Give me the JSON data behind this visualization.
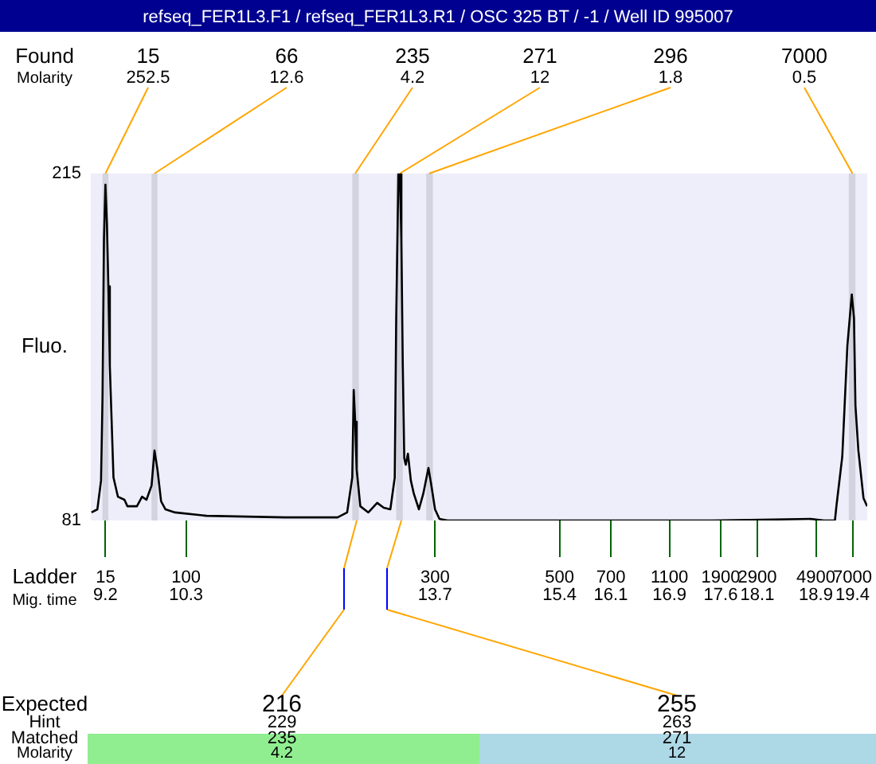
{
  "chart_data": {
    "type": "line",
    "title": "refseq_FER1L3.F1 / refseq_FER1L3.R1 / OSC 325 BT / -1 / Well ID 995007",
    "ylabel": "Fluo.",
    "xlim": [
      9.0,
      19.6
    ],
    "xticks": [
      9.2,
      10.3,
      13.7,
      15.4,
      16.1,
      16.9,
      17.6,
      18.1,
      18.9,
      19.4
    ],
    "ylim": [
      81,
      215
    ],
    "yticks": [
      81,
      215
    ],
    "grid": false,
    "legend": false,
    "marker": "none",
    "line_style": "solid",
    "series": [
      {
        "color": "#000000",
        "x": [
          9.01,
          9.09,
          9.14,
          9.16,
          9.18,
          9.2,
          9.22,
          9.24,
          9.26,
          9.31,
          9.37,
          9.46,
          9.5,
          9.63,
          9.7,
          9.76,
          9.83,
          9.87,
          9.91,
          9.96,
          10.02,
          10.15,
          10.58,
          11.66,
          12.37,
          12.5,
          12.57,
          12.59,
          12.61,
          12.63,
          12.68,
          12.79,
          12.91,
          13.0,
          13.09,
          13.15,
          13.17,
          13.2,
          13.22,
          13.24,
          13.26,
          13.28,
          13.3,
          13.33,
          13.37,
          13.41,
          13.48,
          13.54,
          13.61,
          13.65,
          13.7,
          13.76,
          13.87,
          15.33,
          17.49,
          18.83,
          19.01,
          19.16,
          19.18,
          19.26,
          19.33,
          19.39,
          19.42,
          19.44,
          19.48,
          19.55,
          19.6
        ],
        "values": [
          84.1,
          85.3,
          96.4,
          128.3,
          189.8,
          210.7,
          195.9,
          171.4,
          140.6,
          97.6,
          90.2,
          89.0,
          86.5,
          86.5,
          90.2,
          89.0,
          94.5,
          108.0,
          100.7,
          88.4,
          85.3,
          84.1,
          82.8,
          82.2,
          82.2,
          84.1,
          97.6,
          131.4,
          119.1,
          100.7,
          86.5,
          84.1,
          87.8,
          85.9,
          85.3,
          97.6,
          159.1,
          215,
          215,
          189.8,
          140.6,
          105.0,
          102.5,
          106.8,
          96.4,
          91.4,
          85.3,
          91.4,
          101.3,
          94.5,
          85.3,
          81.6,
          81,
          81,
          81,
          81.6,
          81,
          81,
          86.5,
          105.6,
          148.6,
          168.3,
          159.1,
          125.3,
          108.0,
          89.6,
          86.5
        ]
      }
    ],
    "bands": [
      {
        "axis": "x",
        "from": 9.16,
        "to": 9.24,
        "label": "15",
        "color": "#d3d3e0"
      },
      {
        "axis": "x",
        "from": 9.83,
        "to": 9.91,
        "label": "66",
        "color": "#d3d3e0"
      },
      {
        "axis": "x",
        "from": 12.57,
        "to": 12.66,
        "label": "235",
        "color": "#d3d3e0"
      },
      {
        "axis": "x",
        "from": 13.17,
        "to": 13.26,
        "label": "271",
        "color": "#d3d3e0"
      },
      {
        "axis": "x",
        "from": 13.58,
        "to": 13.67,
        "label": "296",
        "color": "#d3d3e0"
      },
      {
        "axis": "x",
        "from": 19.35,
        "to": 19.44,
        "label": "7000",
        "color": "#d3d3e0"
      }
    ],
    "annotations": [
      "Found",
      "Molarity",
      {
        "text": "252.5",
        "x": 9.2,
        "y": 215
      },
      {
        "text": "12.6",
        "x": 9.87,
        "y": 215
      },
      {
        "text": "4.2",
        "x": 12.61,
        "y": 215
      },
      {
        "text": "12",
        "x": 13.22,
        "y": 215
      },
      {
        "text": "1.8",
        "x": 13.62,
        "y": 215
      },
      {
        "text": "0.5",
        "x": 19.4,
        "y": 215
      },
      "Ladder",
      "Mig. time",
      "Expected",
      "Hint",
      "Matched",
      "Molarity",
      "216",
      "229",
      "235",
      "4.2",
      "255",
      "263",
      "271",
      "12",
      {
        "text": "15",
        "x": 9.2,
        "y": 81
      },
      {
        "text": "100",
        "x": 10.3,
        "y": 81
      },
      {
        "text": "300",
        "x": 13.7,
        "y": 81
      },
      {
        "text": "500",
        "x": 15.4,
        "y": 81
      },
      {
        "text": "700",
        "x": 16.1,
        "y": 81
      },
      {
        "text": "1100",
        "x": 16.9,
        "y": 81
      },
      {
        "text": "1900",
        "x": 17.6,
        "y": 81
      },
      {
        "text": "2900",
        "x": 18.1,
        "y": 81
      },
      {
        "text": "4900",
        "x": 18.9,
        "y": 81
      },
      {
        "text": "7000",
        "x": 19.4,
        "y": 81
      }
    ]
  }
}
